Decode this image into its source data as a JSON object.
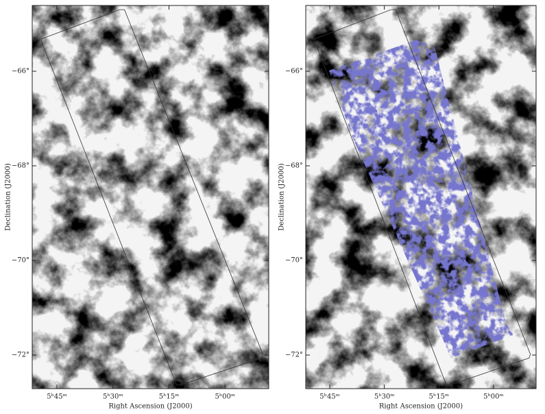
{
  "chart_data": [
    {
      "type": "image",
      "xlabel": "Right Ascension (J2000)",
      "ylabel": "Declination (J2000)",
      "xlim": [
        5.86,
        4.805
      ],
      "ylim": [
        -72.71,
        -64.61
      ],
      "xticks": [
        {
          "value": 5.75,
          "label": "5ʰ45ᵐ"
        },
        {
          "value": 5.5,
          "label": "5ʰ30ᵐ"
        },
        {
          "value": 5.25,
          "label": "5ʰ15ᵐ"
        },
        {
          "value": 5.0,
          "label": "5ʰ00ᵐ"
        }
      ],
      "yticks": [
        {
          "value": -66,
          "label": "−66°"
        },
        {
          "value": -68,
          "label": "−68°"
        },
        {
          "value": -70,
          "label": "−70°"
        },
        {
          "value": -72,
          "label": "−72°"
        }
      ]
    },
    {
      "type": "image",
      "xlabel": "Right Ascension (J2000)",
      "ylabel": "Declination (J2000)",
      "xlim": [
        5.86,
        4.805
      ],
      "ylim": [
        -72.71,
        -64.61
      ],
      "xticks": [
        {
          "value": 5.75,
          "label": "5ʰ45ᵐ"
        },
        {
          "value": 5.5,
          "label": "5ʰ30ᵐ"
        },
        {
          "value": 5.25,
          "label": "5ʰ15ᵐ"
        },
        {
          "value": 5.0,
          "label": "5ʰ00ᵐ"
        }
      ],
      "yticks": [
        {
          "value": -66,
          "label": "−66°"
        },
        {
          "value": -68,
          "label": "−68°"
        },
        {
          "value": -70,
          "label": "−70°"
        },
        {
          "value": -72,
          "label": "−72°"
        }
      ]
    }
  ]
}
